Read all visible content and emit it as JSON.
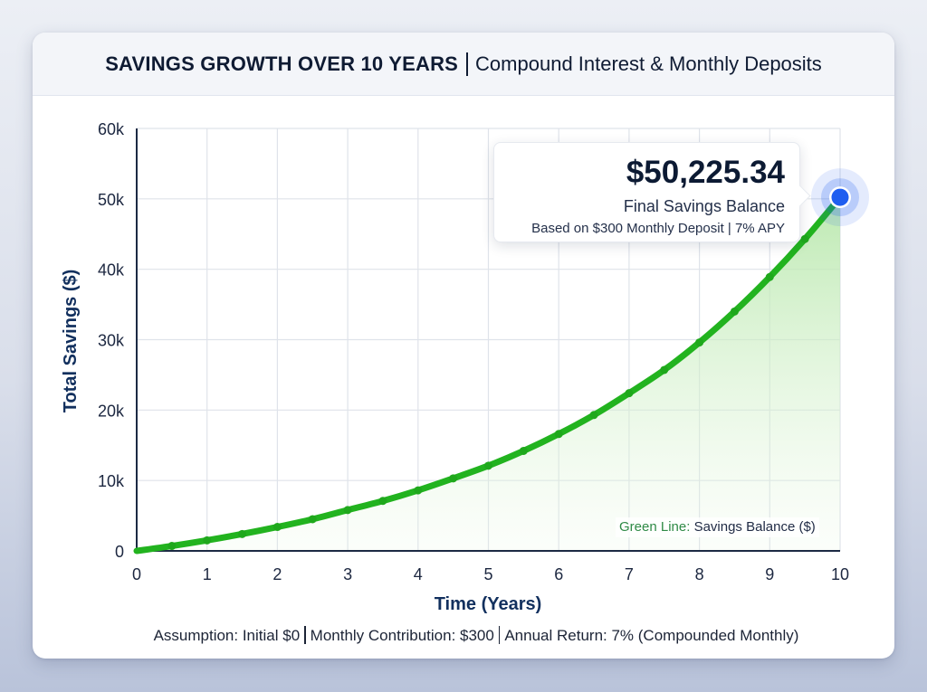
{
  "header": {
    "title_bold": "SAVINGS GROWTH OVER 10 YEARS",
    "title_light": "Compound Interest & Monthly Deposits"
  },
  "tooltip": {
    "value": "$50,225.34",
    "label": "Final Savings Balance",
    "sub": "Based on $300 Monthly Deposit | 7% APY"
  },
  "legend": {
    "key": "Green Line:",
    "value": "Savings Balance ($)"
  },
  "assumption": {
    "parts": [
      "Assumption: Initial $0",
      "Monthly Contribution: $300",
      "Annual Return: 7% (Compounded Monthly)"
    ]
  },
  "colors": {
    "line": "#22b31f",
    "fill_top": "#b9e8ad",
    "marker_end": "#1f5ef0",
    "axis": "#1c2a44",
    "grid": "#dfe3ea"
  },
  "chart_data": {
    "type": "line",
    "title": "SAVINGS GROWTH OVER 10 YEARS | Compound Interest & Monthly Deposits",
    "xlabel": "Time (Years)",
    "ylabel": "Total Savings ($)",
    "xlim": [
      0,
      10
    ],
    "ylim": [
      0,
      60000
    ],
    "x_ticks": [
      "0",
      "1",
      "2",
      "3",
      "4",
      "5",
      "6",
      "7",
      "8",
      "9",
      "10"
    ],
    "y_ticks": [
      "0",
      "10k",
      "20k",
      "30k",
      "40k",
      "50k",
      "60k"
    ],
    "grid": true,
    "legend_position": "bottom-right",
    "series": [
      {
        "name": "Savings Balance ($)",
        "x": [
          0,
          0.5,
          1,
          1.5,
          2,
          2.5,
          3,
          3.5,
          4,
          4.5,
          5,
          5.5,
          6,
          6.5,
          7,
          7.5,
          8,
          8.5,
          9,
          9.5,
          10
        ],
        "values": [
          0,
          700,
          1500,
          2400,
          3400,
          4500,
          5800,
          7100,
          8600,
          10300,
          12100,
          14200,
          16600,
          19300,
          22400,
          25700,
          29600,
          34000,
          38900,
          44300,
          50225.34
        ]
      }
    ],
    "annotations": [
      {
        "x": 10,
        "y": 50225.34,
        "text": "$50,225.34 Final Savings Balance — Based on $300 Monthly Deposit | 7% APY"
      }
    ]
  }
}
